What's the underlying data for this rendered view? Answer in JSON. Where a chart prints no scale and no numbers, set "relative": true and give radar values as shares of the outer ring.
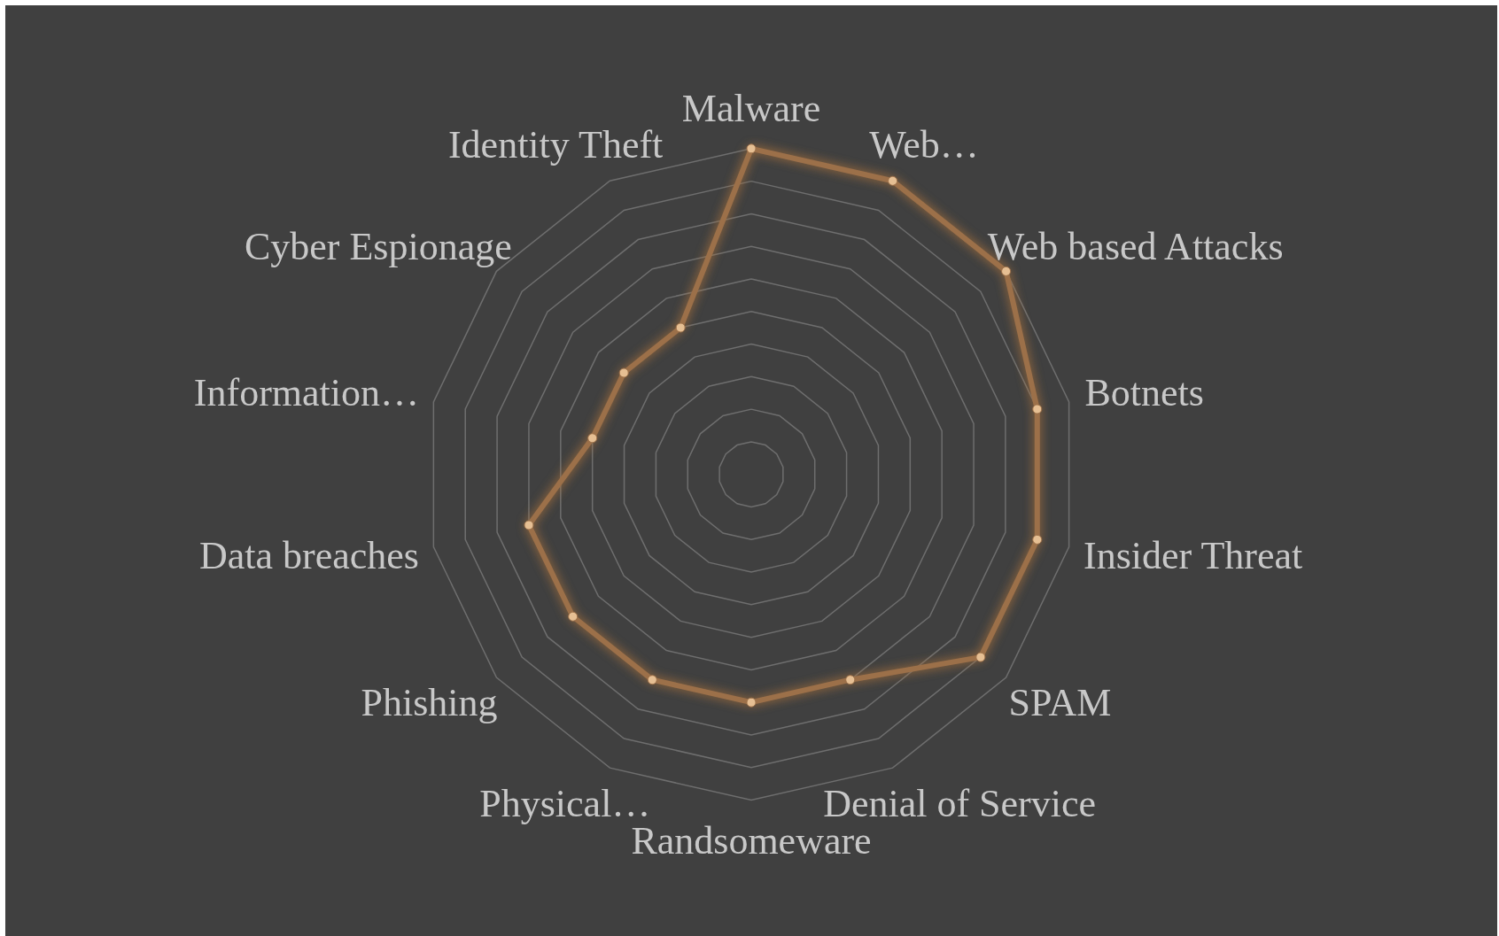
{
  "chart_data": {
    "type": "radar",
    "relative": true,
    "categories": [
      "Malware",
      "Web…",
      "Web based Attacks",
      "Botnets",
      "Insider Threat",
      "SPAM",
      "Denial of Service",
      "Randsomeware",
      "Physical…",
      "Phishing",
      "Data breaches",
      "Information…",
      "Cyber Espionage",
      "Identity Theft"
    ],
    "series": [
      {
        "color": "#9c7049",
        "values": [
          1.0,
          1.0,
          1.0,
          0.9,
          0.9,
          0.9,
          0.7,
          0.7,
          0.7,
          0.7,
          0.7,
          0.5,
          0.5,
          0.5
        ]
      }
    ],
    "marker": "circle",
    "line_style": "solid",
    "grid": true
  }
}
